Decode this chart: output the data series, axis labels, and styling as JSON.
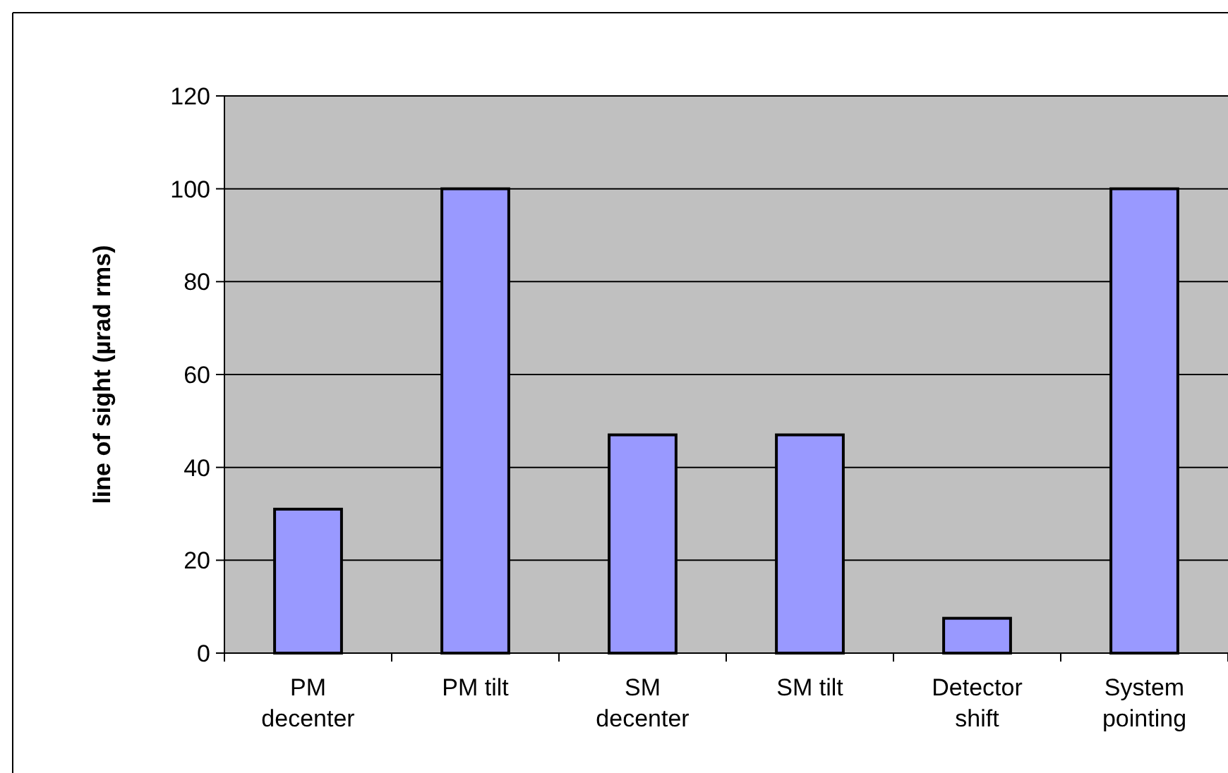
{
  "chart_data": {
    "type": "bar",
    "ylabel": "line of sight (µrad rms)",
    "categories": [
      "PM decenter",
      "PM tilt",
      "SM decenter",
      "SM tilt",
      "Detector shift",
      "System pointing"
    ],
    "values": [
      31,
      100,
      47,
      47,
      7.5,
      100
    ],
    "color": "#9999ff",
    "ylim": [
      0,
      120
    ],
    "yticks": [
      0,
      20,
      40,
      60,
      80,
      100,
      120
    ],
    "grid": "y"
  }
}
